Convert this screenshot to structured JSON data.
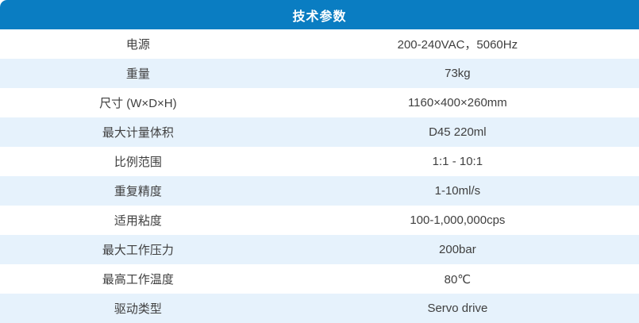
{
  "table": {
    "title": "技术参数",
    "rows": [
      {
        "label": "电源",
        "value": "200-240VAC，5060Hz"
      },
      {
        "label": "重量",
        "value": "73kg"
      },
      {
        "label": "尺寸 (W×D×H)",
        "value": "1160×400×260mm"
      },
      {
        "label": "最大计量体积",
        "value": "D45 220ml"
      },
      {
        "label": "比例范围",
        "value": "1:1 - 10:1"
      },
      {
        "label": "重复精度",
        "value": "1-10ml/s"
      },
      {
        "label": "适用粘度",
        "value": "100-1,000,000cps"
      },
      {
        "label": "最大工作压力",
        "value": "200bar"
      },
      {
        "label": "最高工作温度",
        "value": "80℃"
      },
      {
        "label": "驱动类型",
        "value": "Servo drive"
      }
    ],
    "colors": {
      "header_bg": "#0a7dc2",
      "header_text": "#ffffff",
      "row_bg": "#ffffff",
      "row_alt_bg": "#e6f2fc",
      "body_text": "#3f3f3f"
    }
  }
}
